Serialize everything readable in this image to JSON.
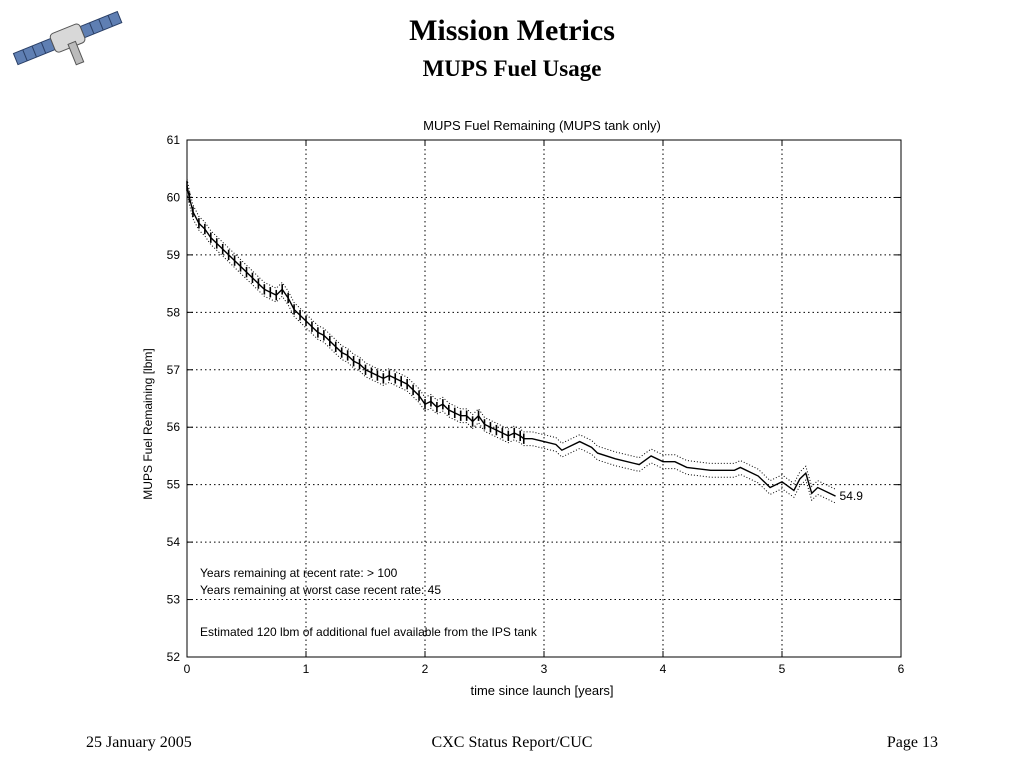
{
  "slide": {
    "title": "Mission Metrics",
    "subtitle": "MUPS Fuel Usage"
  },
  "footer": {
    "date": "25 January 2005",
    "center": "CXC Status Report/CUC",
    "page": "Page 13"
  },
  "colors": {
    "background": "#ffffff",
    "line": "#000000",
    "grid": "#000000"
  },
  "logo": {
    "icon": "satellite-icon"
  },
  "chart_data": {
    "type": "line",
    "title": "MUPS Fuel Remaining (MUPS tank only)",
    "xlabel": "time since launch [years]",
    "ylabel": "MUPS Fuel Remaining [lbm]",
    "xlim": [
      0,
      6
    ],
    "ylim": [
      52,
      61
    ],
    "xticks": [
      0,
      1,
      2,
      3,
      4,
      5,
      6
    ],
    "yticks": [
      52,
      53,
      54,
      55,
      56,
      57,
      58,
      59,
      60,
      61
    ],
    "grid": true,
    "end_label": "54.9",
    "series": [
      {
        "values": [
          {
            "x": 0.0,
            "y": 60.2
          },
          {
            "x": 0.02,
            "y": 60.0
          },
          {
            "x": 0.05,
            "y": 59.75
          },
          {
            "x": 0.1,
            "y": 59.55
          },
          {
            "x": 0.15,
            "y": 59.45
          },
          {
            "x": 0.2,
            "y": 59.3
          },
          {
            "x": 0.25,
            "y": 59.2
          },
          {
            "x": 0.3,
            "y": 59.1
          },
          {
            "x": 0.35,
            "y": 59.0
          },
          {
            "x": 0.4,
            "y": 58.9
          },
          {
            "x": 0.45,
            "y": 58.8
          },
          {
            "x": 0.5,
            "y": 58.7
          },
          {
            "x": 0.55,
            "y": 58.6
          },
          {
            "x": 0.6,
            "y": 58.5
          },
          {
            "x": 0.65,
            "y": 58.4
          },
          {
            "x": 0.7,
            "y": 58.35
          },
          {
            "x": 0.75,
            "y": 58.3
          },
          {
            "x": 0.8,
            "y": 58.4
          },
          {
            "x": 0.85,
            "y": 58.25
          },
          {
            "x": 0.9,
            "y": 58.05
          },
          {
            "x": 0.95,
            "y": 57.95
          },
          {
            "x": 1.0,
            "y": 57.85
          },
          {
            "x": 1.05,
            "y": 57.75
          },
          {
            "x": 1.1,
            "y": 57.65
          },
          {
            "x": 1.15,
            "y": 57.6
          },
          {
            "x": 1.2,
            "y": 57.5
          },
          {
            "x": 1.25,
            "y": 57.4
          },
          {
            "x": 1.3,
            "y": 57.3
          },
          {
            "x": 1.35,
            "y": 57.25
          },
          {
            "x": 1.4,
            "y": 57.15
          },
          {
            "x": 1.45,
            "y": 57.1
          },
          {
            "x": 1.5,
            "y": 57.0
          },
          {
            "x": 1.55,
            "y": 56.95
          },
          {
            "x": 1.6,
            "y": 56.9
          },
          {
            "x": 1.65,
            "y": 56.85
          },
          {
            "x": 1.7,
            "y": 56.9
          },
          {
            "x": 1.75,
            "y": 56.85
          },
          {
            "x": 1.8,
            "y": 56.8
          },
          {
            "x": 1.85,
            "y": 56.75
          },
          {
            "x": 1.9,
            "y": 56.65
          },
          {
            "x": 1.95,
            "y": 56.55
          },
          {
            "x": 2.0,
            "y": 56.4
          },
          {
            "x": 2.05,
            "y": 56.45
          },
          {
            "x": 2.1,
            "y": 56.35
          },
          {
            "x": 2.15,
            "y": 56.4
          },
          {
            "x": 2.2,
            "y": 56.3
          },
          {
            "x": 2.25,
            "y": 56.25
          },
          {
            "x": 2.3,
            "y": 56.2
          },
          {
            "x": 2.35,
            "y": 56.2
          },
          {
            "x": 2.4,
            "y": 56.1
          },
          {
            "x": 2.45,
            "y": 56.2
          },
          {
            "x": 2.5,
            "y": 56.05
          },
          {
            "x": 2.55,
            "y": 56.0
          },
          {
            "x": 2.6,
            "y": 55.95
          },
          {
            "x": 2.65,
            "y": 55.9
          },
          {
            "x": 2.7,
            "y": 55.85
          },
          {
            "x": 2.75,
            "y": 55.9
          },
          {
            "x": 2.8,
            "y": 55.85
          },
          {
            "x": 2.83,
            "y": 55.8
          },
          {
            "x": 2.9,
            "y": 55.8
          },
          {
            "x": 3.0,
            "y": 55.75
          },
          {
            "x": 3.1,
            "y": 55.7
          },
          {
            "x": 3.15,
            "y": 55.6
          },
          {
            "x": 3.3,
            "y": 55.75
          },
          {
            "x": 3.4,
            "y": 55.65
          },
          {
            "x": 3.45,
            "y": 55.55
          },
          {
            "x": 3.6,
            "y": 55.45
          },
          {
            "x": 3.8,
            "y": 55.35
          },
          {
            "x": 3.9,
            "y": 55.5
          },
          {
            "x": 4.0,
            "y": 55.4
          },
          {
            "x": 4.1,
            "y": 55.4
          },
          {
            "x": 4.2,
            "y": 55.3
          },
          {
            "x": 4.4,
            "y": 55.25
          },
          {
            "x": 4.6,
            "y": 55.25
          },
          {
            "x": 4.65,
            "y": 55.3
          },
          {
            "x": 4.8,
            "y": 55.15
          },
          {
            "x": 4.85,
            "y": 55.05
          },
          {
            "x": 4.9,
            "y": 54.95
          },
          {
            "x": 5.0,
            "y": 55.05
          },
          {
            "x": 5.1,
            "y": 54.9
          },
          {
            "x": 5.15,
            "y": 55.1
          },
          {
            "x": 5.2,
            "y": 55.2
          },
          {
            "x": 5.25,
            "y": 54.85
          },
          {
            "x": 5.3,
            "y": 54.95
          },
          {
            "x": 5.4,
            "y": 54.85
          },
          {
            "x": 5.45,
            "y": 54.8
          }
        ]
      }
    ],
    "annotations": [
      "Years remaining at recent rate:  > 100",
      "Years remaining at worst case recent rate: 45",
      "Estimated 120 lbm of additional fuel available from the IPS tank"
    ]
  }
}
